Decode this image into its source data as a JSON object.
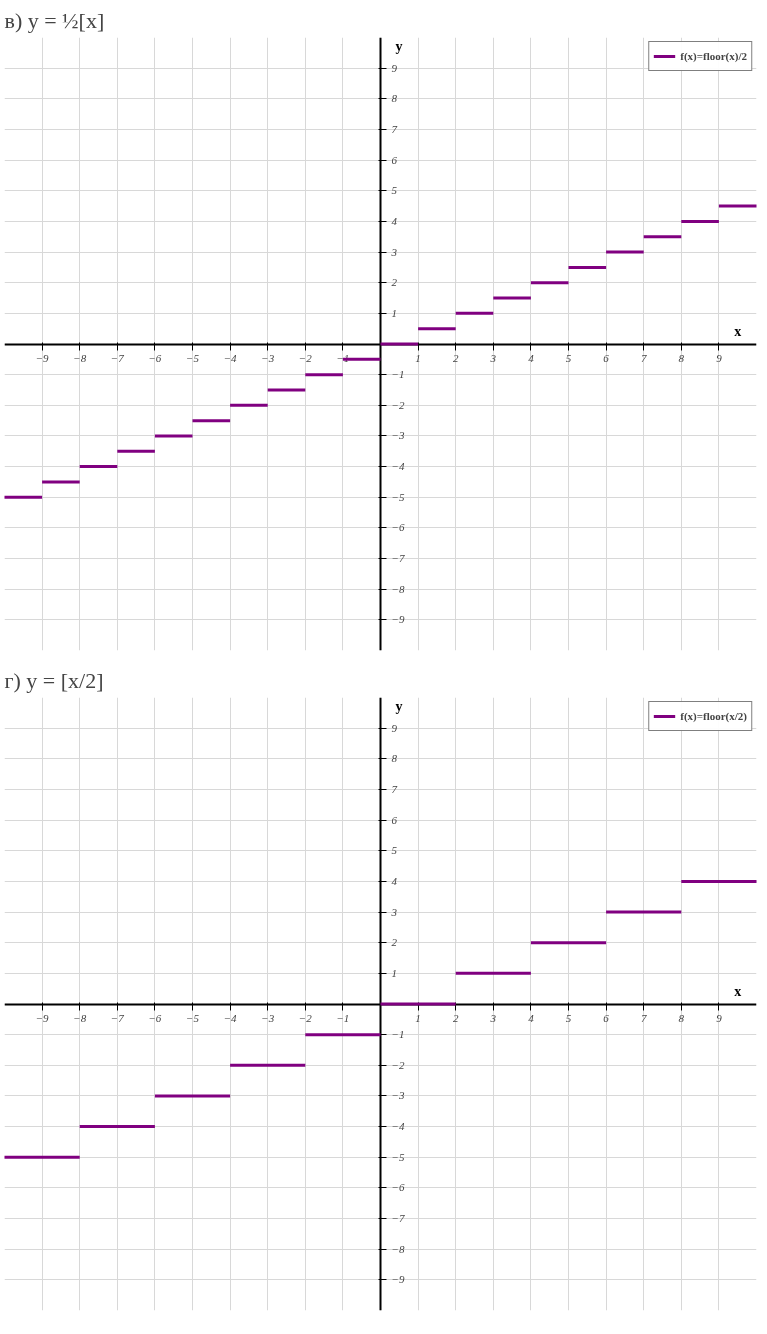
{
  "chart_data": [
    {
      "type": "line",
      "title": "в) y = ½[x]",
      "xlabel": "x",
      "ylabel": "y",
      "xlim": [
        -10,
        10
      ],
      "ylim": [
        -10,
        10
      ],
      "xticks": [
        -9,
        -8,
        -7,
        -6,
        -5,
        -4,
        -3,
        -2,
        -1,
        1,
        2,
        3,
        4,
        5,
        6,
        7,
        8,
        9
      ],
      "yticks": [
        -9,
        -8,
        -7,
        -6,
        -5,
        -4,
        -3,
        -2,
        -1,
        1,
        2,
        3,
        4,
        5,
        6,
        7,
        8,
        9
      ],
      "grid": true,
      "legend": "top right",
      "line_style": "solid",
      "series": [
        {
          "name": "f(x)=floor(x)/2",
          "color": "#800080",
          "x": [
            -10,
            -9
          ],
          "values": [
            -5,
            -5
          ]
        },
        {
          "color": "#800080",
          "x": [
            -9,
            -8
          ],
          "values": [
            -4.5,
            -4.5
          ]
        },
        {
          "color": "#800080",
          "x": [
            -8,
            -7
          ],
          "values": [
            -4,
            -4
          ]
        },
        {
          "color": "#800080",
          "x": [
            -7,
            -6
          ],
          "values": [
            -3.5,
            -3.5
          ]
        },
        {
          "color": "#800080",
          "x": [
            -6,
            -5
          ],
          "values": [
            -3,
            -3
          ]
        },
        {
          "color": "#800080",
          "x": [
            -5,
            -4
          ],
          "values": [
            -2.5,
            -2.5
          ]
        },
        {
          "color": "#800080",
          "x": [
            -4,
            -3
          ],
          "values": [
            -2,
            -2
          ]
        },
        {
          "color": "#800080",
          "x": [
            -3,
            -2
          ],
          "values": [
            -1.5,
            -1.5
          ]
        },
        {
          "color": "#800080",
          "x": [
            -2,
            -1
          ],
          "values": [
            -1,
            -1
          ]
        },
        {
          "color": "#800080",
          "x": [
            -1,
            0
          ],
          "values": [
            -0.5,
            -0.5
          ]
        },
        {
          "color": "#800080",
          "x": [
            0,
            1
          ],
          "values": [
            0,
            0
          ]
        },
        {
          "color": "#800080",
          "x": [
            1,
            2
          ],
          "values": [
            0.5,
            0.5
          ]
        },
        {
          "color": "#800080",
          "x": [
            2,
            3
          ],
          "values": [
            1,
            1
          ]
        },
        {
          "color": "#800080",
          "x": [
            3,
            4
          ],
          "values": [
            1.5,
            1.5
          ]
        },
        {
          "color": "#800080",
          "x": [
            4,
            5
          ],
          "values": [
            2,
            2
          ]
        },
        {
          "color": "#800080",
          "x": [
            5,
            6
          ],
          "values": [
            2.5,
            2.5
          ]
        },
        {
          "color": "#800080",
          "x": [
            6,
            7
          ],
          "values": [
            3,
            3
          ]
        },
        {
          "color": "#800080",
          "x": [
            7,
            8
          ],
          "values": [
            3.5,
            3.5
          ]
        },
        {
          "color": "#800080",
          "x": [
            8,
            9
          ],
          "values": [
            4,
            4
          ]
        },
        {
          "color": "#800080",
          "x": [
            9,
            10
          ],
          "values": [
            4.5,
            4.5
          ]
        }
      ]
    },
    {
      "type": "line",
      "title": "г) y = [x/2]",
      "xlabel": "x",
      "ylabel": "y",
      "xlim": [
        -10,
        10
      ],
      "ylim": [
        -10,
        10
      ],
      "xticks": [
        -9,
        -8,
        -7,
        -6,
        -5,
        -4,
        -3,
        -2,
        -1,
        1,
        2,
        3,
        4,
        5,
        6,
        7,
        8,
        9
      ],
      "yticks": [
        -9,
        -8,
        -7,
        -6,
        -5,
        -4,
        -3,
        -2,
        -1,
        1,
        2,
        3,
        4,
        5,
        6,
        7,
        8,
        9
      ],
      "grid": true,
      "legend": "top right",
      "line_style": "solid",
      "series": [
        {
          "name": "f(x)=floor(x/2)",
          "color": "#800080",
          "x": [
            -10,
            -8
          ],
          "values": [
            -5,
            -5
          ]
        },
        {
          "color": "#800080",
          "x": [
            -8,
            -6
          ],
          "values": [
            -4,
            -4
          ]
        },
        {
          "color": "#800080",
          "x": [
            -6,
            -4
          ],
          "values": [
            -3,
            -3
          ]
        },
        {
          "color": "#800080",
          "x": [
            -4,
            -2
          ],
          "values": [
            -2,
            -2
          ]
        },
        {
          "color": "#800080",
          "x": [
            -2,
            0
          ],
          "values": [
            -1,
            -1
          ]
        },
        {
          "color": "#800080",
          "x": [
            0,
            2
          ],
          "values": [
            0,
            0
          ]
        },
        {
          "color": "#800080",
          "x": [
            2,
            4
          ],
          "values": [
            1,
            1
          ]
        },
        {
          "color": "#800080",
          "x": [
            4,
            6
          ],
          "values": [
            2,
            2
          ]
        },
        {
          "color": "#800080",
          "x": [
            6,
            8
          ],
          "values": [
            3,
            3
          ]
        },
        {
          "color": "#800080",
          "x": [
            8,
            10
          ],
          "values": [
            4,
            4
          ]
        }
      ]
    }
  ]
}
